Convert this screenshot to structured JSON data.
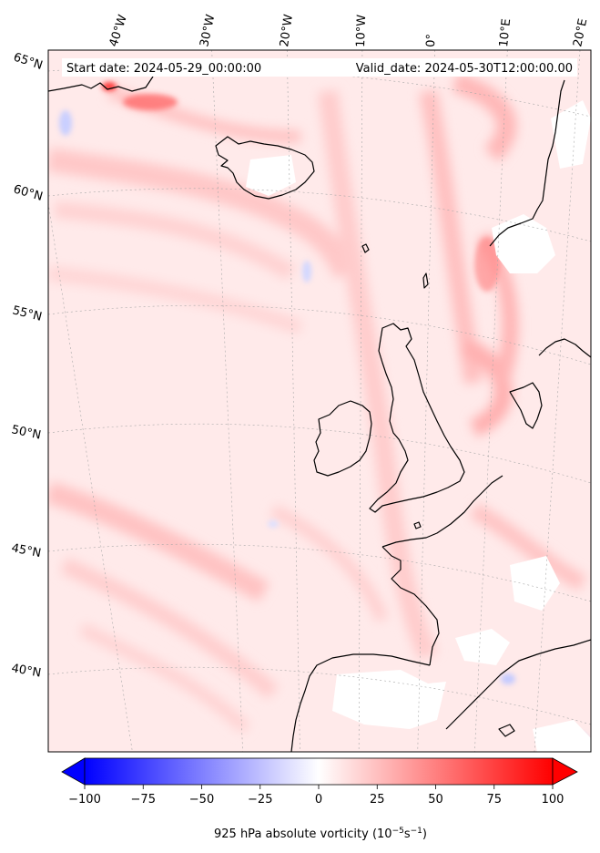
{
  "header": {
    "start_label": "Start date: 2024-05-29_00:00:00",
    "valid_label": "Valid_date: 2024-05-30T12:00:00.00"
  },
  "map": {
    "lon_labels": [
      "40°W",
      "30°W",
      "20°W",
      "10°W",
      "0°",
      "10°E",
      "20°E"
    ],
    "lat_labels": [
      "65°N",
      "60°N",
      "55°N",
      "50°N",
      "45°N",
      "40°N"
    ],
    "field_color_low": "#0000ff",
    "field_color_mid": "#ffffff",
    "field_color_high": "#ff0000"
  },
  "colorbar": {
    "min": -100,
    "max": 100,
    "ticks": [
      "−100",
      "−75",
      "−50",
      "−25",
      "0",
      "25",
      "50",
      "75",
      "100"
    ],
    "label_main": "925 hPa absolute vorticity (10",
    "label_exp1": "−5",
    "label_mid": "s",
    "label_exp2": "−1",
    "label_end": ")",
    "extend": "both"
  }
}
